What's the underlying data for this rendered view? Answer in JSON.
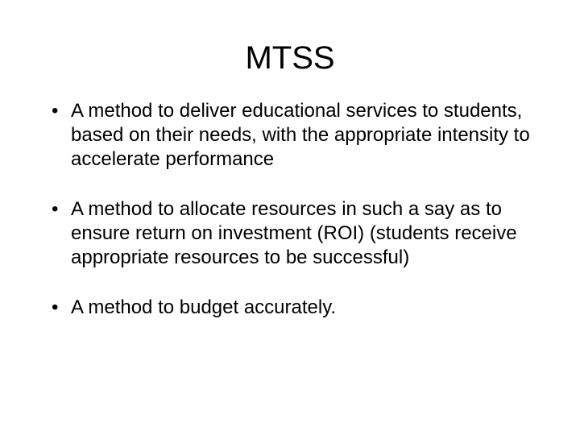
{
  "slide": {
    "title": "MTSS",
    "title_fontsize": 40,
    "body_fontsize": 24,
    "background_color": "#ffffff",
    "text_color": "#000000",
    "font_family": "Arial",
    "bullets": [
      "A method to deliver educational services to students, based on their needs, with the appropriate intensity to accelerate performance",
      "A method to allocate resources in such a say as to ensure return on investment (ROI) (students receive appropriate resources to be successful)",
      "A method to budget accurately."
    ]
  }
}
